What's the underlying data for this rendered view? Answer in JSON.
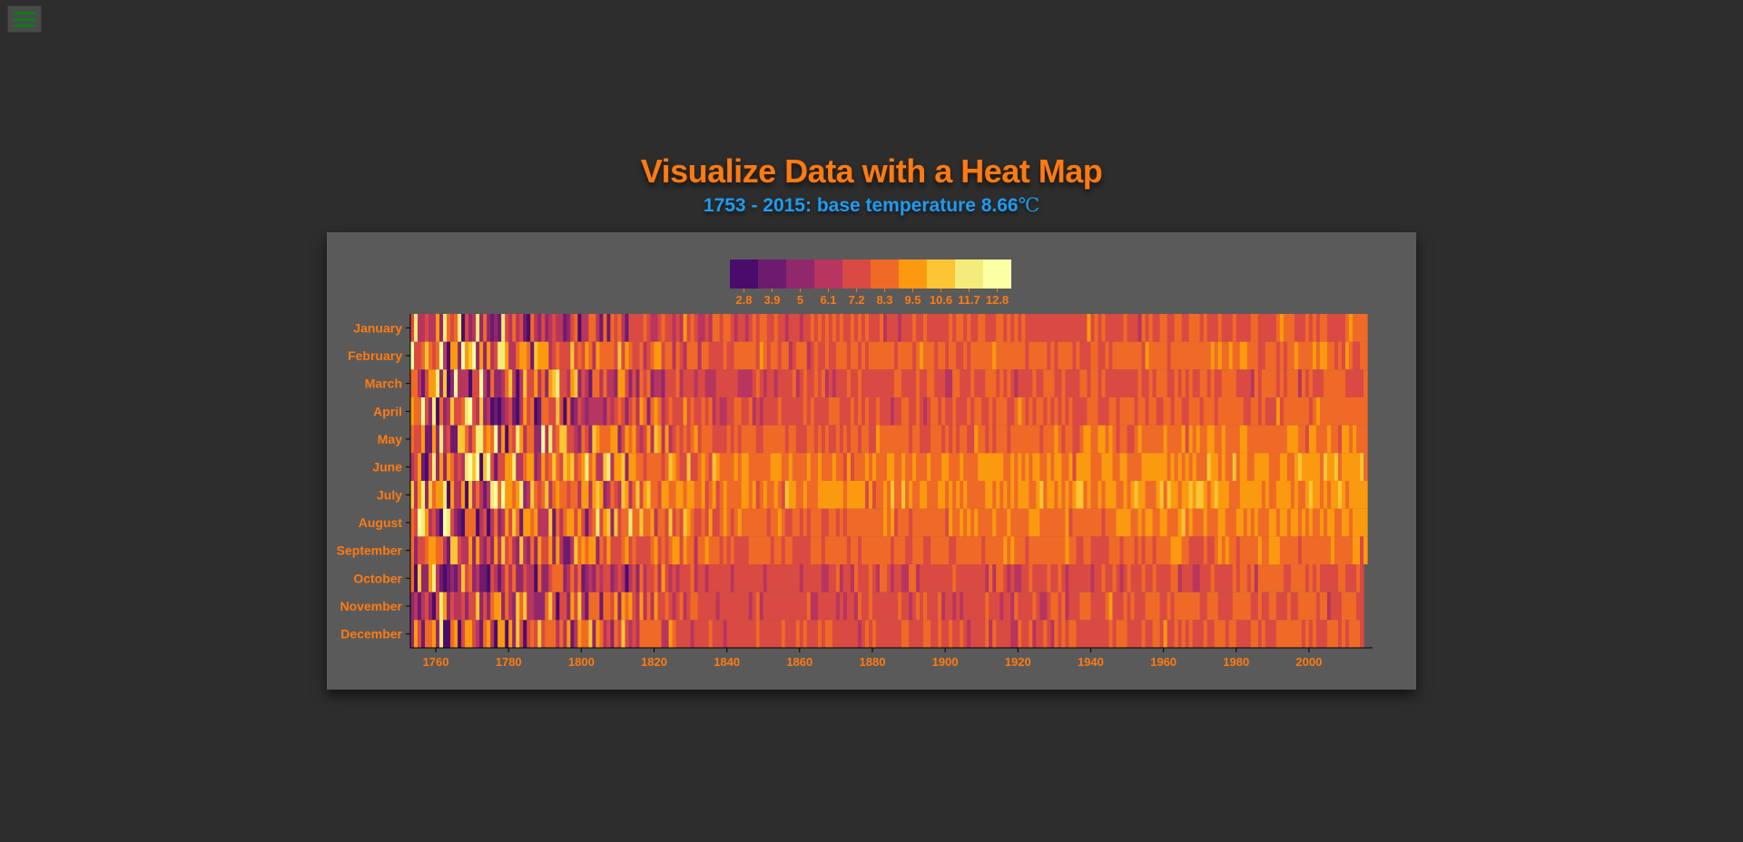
{
  "title": "Visualize Data with a Heat Map",
  "subtitle_range": "1753 - 2015: base temperature 8.66",
  "subtitle_unit": "℃",
  "icons": {
    "menu": "menu-icon"
  },
  "colors": {
    "background": "#2d2d2d",
    "panel": "#5a5a5a",
    "title": "#ff7a12",
    "subtitle": "#1e9bf0",
    "axis": "#ff7a12",
    "menu_icon": "#0b7d18"
  },
  "chart_data": {
    "type": "heatmap",
    "title": "Visualize Data with a Heat Map",
    "xlabel": "",
    "ylabel": "",
    "base_temperature": 8.66,
    "year_range": [
      1753,
      2015
    ],
    "last_month_2015": 9,
    "xlim": [
      1753,
      2016
    ],
    "x_ticks": [
      1760,
      1780,
      1800,
      1820,
      1840,
      1860,
      1880,
      1900,
      1920,
      1940,
      1960,
      1980,
      2000
    ],
    "months": [
      "January",
      "February",
      "March",
      "April",
      "May",
      "June",
      "July",
      "August",
      "September",
      "October",
      "November",
      "December"
    ],
    "legend": {
      "thresholds": [
        2.8,
        3.9,
        5,
        6.1,
        7.2,
        8.3,
        9.5,
        10.6,
        11.7,
        12.8
      ],
      "colors": [
        "#4a0c6b",
        "#6e1a6f",
        "#91286c",
        "#b7355f",
        "#d94a43",
        "#ef6a27",
        "#fb9a0f",
        "#fbc535",
        "#f4ec7a",
        "#fcffa4"
      ]
    },
    "color_trend": {
      "note": "cell colour follows the legend scale; early years (1753-1830) vary widely between dark purple and pale yellow, later years cluster in orange shades",
      "early_period_mean_bin": 6.5,
      "late_period_mean_bin": 7.6
    }
  }
}
